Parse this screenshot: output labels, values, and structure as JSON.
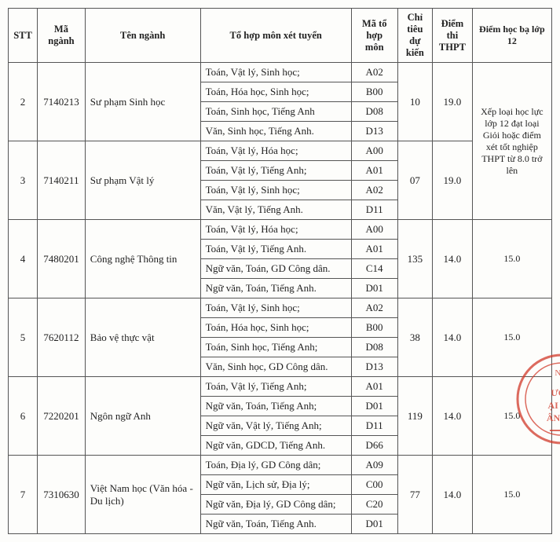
{
  "headers": {
    "stt": "STT",
    "ma": "Mã ngành",
    "ten": "Tên ngành",
    "th": "Tổ hợp môn xét tuyển",
    "mth": "Mã tổ hợp môn",
    "ct": "Chỉ tiêu dự kiến",
    "dt": "Điểm thi THPT",
    "hb": "Điểm học bạ lớp 12"
  },
  "note23": "Xếp loại học lực lớp 12 đạt loại Giỏi hoặc điểm xét tốt nghiệp THPT từ 8.0 trở lên",
  "rows": [
    {
      "stt": "2",
      "ma": "7140213",
      "ten": "Sư phạm Sinh học",
      "ct": "10",
      "dt": "19.0",
      "hb": "",
      "subjects": [
        {
          "th": "Toán, Vật lý, Sinh học;",
          "mth": "A02"
        },
        {
          "th": "Toán, Hóa học, Sinh học;",
          "mth": "B00"
        },
        {
          "th": "Toán, Sinh học, Tiếng Anh",
          "mth": "D08"
        },
        {
          "th": "Văn, Sinh học, Tiếng Anh.",
          "mth": "D13"
        }
      ]
    },
    {
      "stt": "3",
      "ma": "7140211",
      "ten": "Sư phạm Vật lý",
      "ct": "07",
      "dt": "19.0",
      "hb": "",
      "subjects": [
        {
          "th": "Toán, Vật lý, Hóa học;",
          "mth": "A00"
        },
        {
          "th": "Toán, Vật lý, Tiếng Anh;",
          "mth": "A01"
        },
        {
          "th": "Toán, Vật lý, Sinh học;",
          "mth": "A02"
        },
        {
          "th": "Văn, Vật lý, Tiếng Anh.",
          "mth": "D11"
        }
      ]
    },
    {
      "stt": "4",
      "ma": "7480201",
      "ten": "Công nghệ Thông tin",
      "ct": "135",
      "dt": "14.0",
      "hb": "15.0",
      "subjects": [
        {
          "th": "Toán, Vật lý, Hóa học;",
          "mth": "A00"
        },
        {
          "th": "Toán, Vật lý, Tiếng Anh.",
          "mth": "A01"
        },
        {
          "th": "Ngữ văn, Toán, GD Công dân.",
          "mth": "C14"
        },
        {
          "th": "Ngữ văn, Toán, Tiếng Anh.",
          "mth": "D01"
        }
      ]
    },
    {
      "stt": "5",
      "ma": "7620112",
      "ten": "Bảo vệ thực vật",
      "ct": "38",
      "dt": "14.0",
      "hb": "15.0",
      "subjects": [
        {
          "th": "Toán, Vật lý, Sinh học;",
          "mth": "A02"
        },
        {
          "th": "Toán, Hóa học, Sinh học;",
          "mth": "B00"
        },
        {
          "th": "Toán, Sinh học, Tiếng Anh;",
          "mth": "D08"
        },
        {
          "th": "Văn, Sinh học, GD Công dân.",
          "mth": "D13"
        }
      ]
    },
    {
      "stt": "6",
      "ma": "7220201",
      "ten": "Ngôn ngữ Anh",
      "ct": "119",
      "dt": "14.0",
      "hb": "15.0",
      "subjects": [
        {
          "th": "Toán, Vật lý, Tiếng Anh;",
          "mth": "A01"
        },
        {
          "th": "Ngữ văn, Toán, Tiếng Anh;",
          "mth": "D01"
        },
        {
          "th": "Ngữ văn, Vật lý, Tiếng Anh;",
          "mth": "D11"
        },
        {
          "th": "Ngữ văn, GDCD, Tiếng Anh.",
          "mth": "D66"
        }
      ]
    },
    {
      "stt": "7",
      "ma": "7310630",
      "ten": "Việt Nam học (Văn hóa - Du lịch)",
      "ct": "77",
      "dt": "14.0",
      "hb": "15.0",
      "subjects": [
        {
          "th": "Toán, Địa lý, GD Công dân;",
          "mth": "A09"
        },
        {
          "th": "Ngữ văn, Lịch sử, Địa lý;",
          "mth": "C00"
        },
        {
          "th": "Ngữ văn, Địa lý, GD Công dân;",
          "mth": "C20"
        },
        {
          "th": "Ngữ văn, Toán, Tiếng Anh.",
          "mth": "D01"
        }
      ]
    }
  ],
  "colors": {
    "border": "#555555",
    "bg": "#fdfdfb",
    "text": "#222222",
    "stamp": "#d13a2a"
  }
}
